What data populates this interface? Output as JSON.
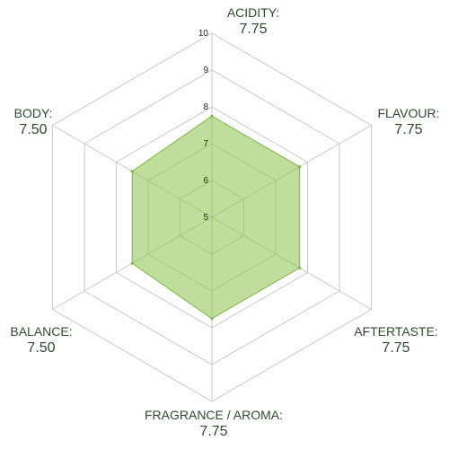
{
  "chart_data": {
    "type": "radar",
    "rmin": 5,
    "rmax": 10,
    "ticks": [
      "5",
      "6",
      "7",
      "8",
      "9",
      "10"
    ],
    "categories": [
      {
        "name": "ACIDITY:",
        "value": 7.75,
        "value_label": "7.75"
      },
      {
        "name": "FLAVOUR:",
        "value": 7.75,
        "value_label": "7.75"
      },
      {
        "name": "AFTERTASTE:",
        "value": 7.75,
        "value_label": "7.75"
      },
      {
        "name": "FRAGRANCE / AROMA:",
        "value": 7.75,
        "value_label": "7.75"
      },
      {
        "name": "BALANCE:",
        "value": 7.5,
        "value_label": "7.50"
      },
      {
        "name": "BODY:",
        "value": 7.5,
        "value_label": "7.50"
      }
    ],
    "colors": {
      "fill": "#8bc34a",
      "grid": "#c8c8c8",
      "label_text": "#2e4a2c"
    },
    "grid": true,
    "legend": "none"
  }
}
